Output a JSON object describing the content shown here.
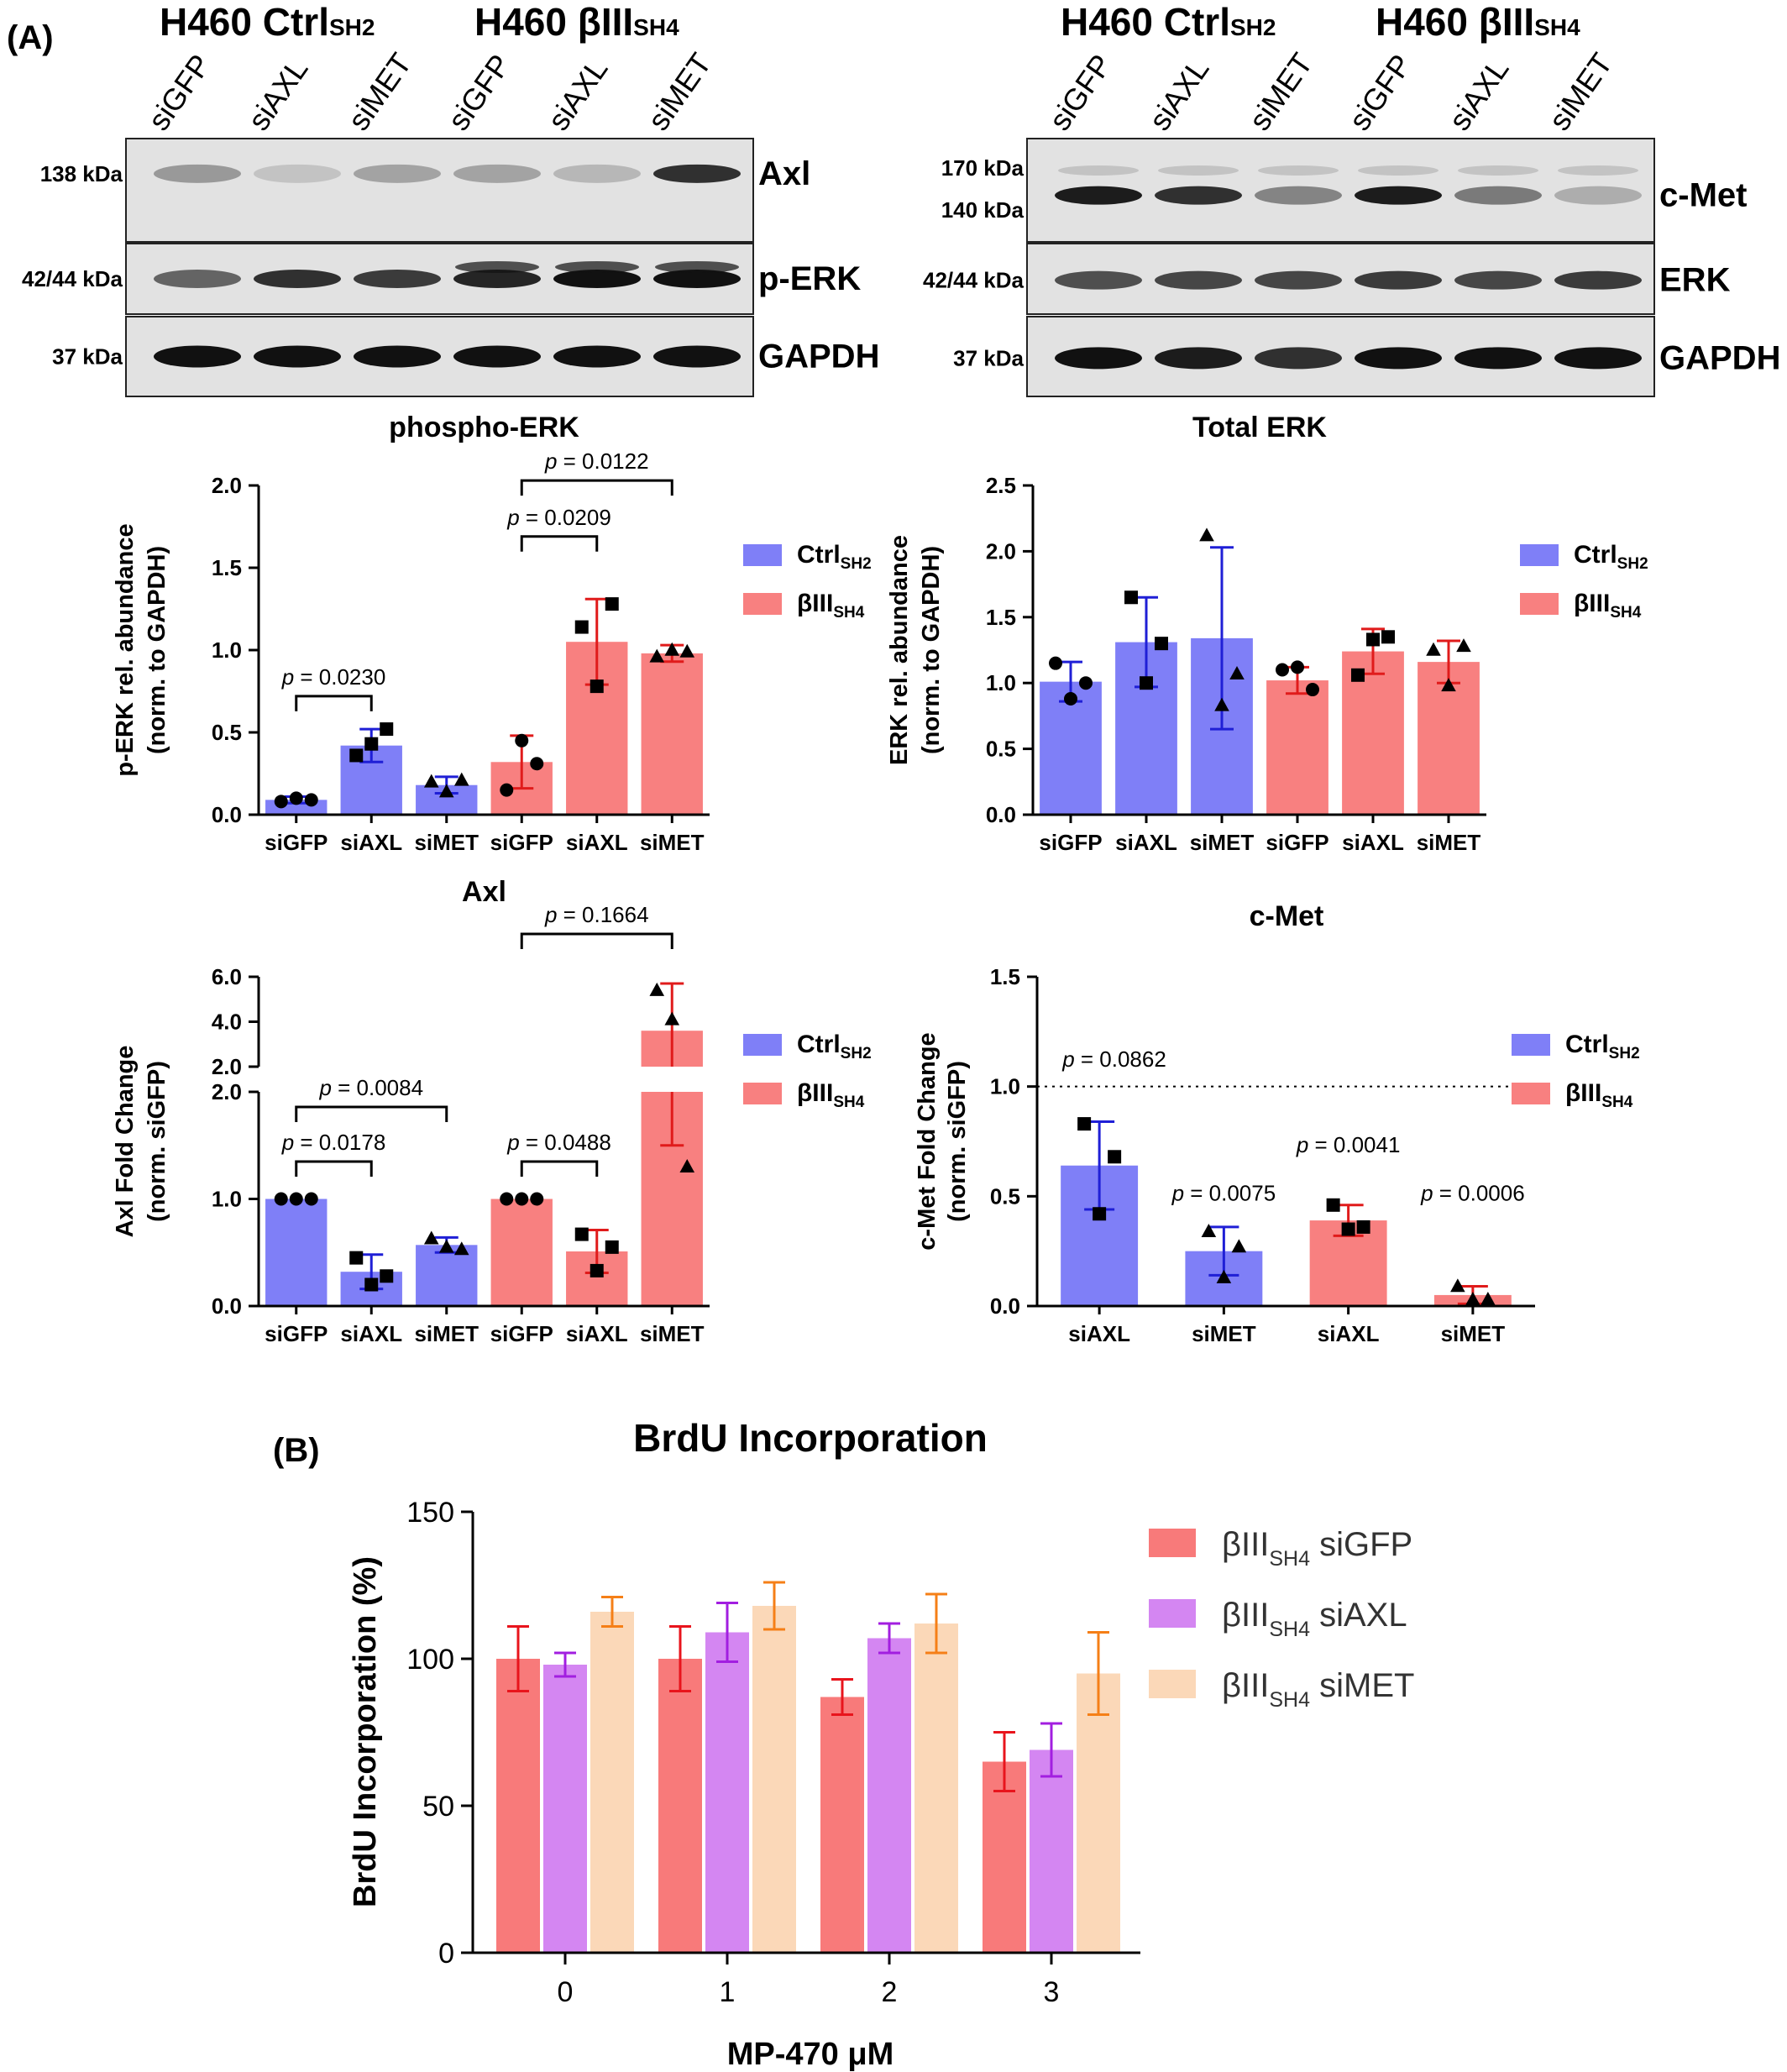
{
  "panel_labels": {
    "a": "(A)",
    "b": "(B)"
  },
  "western_blots": [
    {
      "group_titles": [
        [
          "H460 Ctrl",
          "SH2"
        ],
        [
          "H460 βIII",
          "SH4"
        ]
      ],
      "lanes": [
        "siGFP",
        "siAXL",
        "siMET",
        "siGFP",
        "siAXL",
        "siMET"
      ],
      "strips": [
        {
          "kda": [
            "138 kDa"
          ],
          "protein": "Axl"
        },
        {
          "kda": [
            "42/44 kDa"
          ],
          "protein": "p-ERK"
        },
        {
          "kda": [
            "37 kDa"
          ],
          "protein": "GAPDH"
        }
      ]
    },
    {
      "group_titles": [
        [
          "H460 Ctrl",
          "SH2"
        ],
        [
          "H460 βIII",
          "SH4"
        ]
      ],
      "lanes": [
        "siGFP",
        "siAXL",
        "siMET",
        "siGFP",
        "siAXL",
        "siMET"
      ],
      "strips": [
        {
          "kda": [
            "170 kDa",
            "140 kDa"
          ],
          "protein": "c-Met"
        },
        {
          "kda": [
            "42/44 kDa"
          ],
          "protein": "ERK"
        },
        {
          "kda": [
            "37 kDa"
          ],
          "protein": "GAPDH"
        }
      ]
    }
  ],
  "colors": {
    "ctrl": "#7f7ff7",
    "ctrl_err": "#1f1fd6",
    "biii": "#f88080",
    "biii_err": "#e01b1b",
    "biii_sigfp": "#f87a7a",
    "biii_siaxl": "#d486f2",
    "biii_simet": "#fbd8b8",
    "err_sigfp": "#e8141c",
    "err_siaxl": "#a21ee0",
    "err_simet": "#f57f17"
  },
  "chart_data": [
    {
      "id": "phospho-erk",
      "type": "bar",
      "title": "phospho-ERK",
      "ylabel": [
        "p-ERK rel. abundance",
        "(norm. to GAPDH)"
      ],
      "ylim": [
        0,
        2.0
      ],
      "yticks": [
        "0.0",
        "0.5",
        "1.0",
        "1.5",
        "2.0"
      ],
      "categories": [
        "siGFP",
        "siAXL",
        "siMET",
        "siGFP",
        "siAXL",
        "siMET"
      ],
      "bar_groups": [
        "ctrl",
        "ctrl",
        "ctrl",
        "biii",
        "biii",
        "biii"
      ],
      "values": [
        0.09,
        0.42,
        0.18,
        0.32,
        1.05,
        0.98
      ],
      "errors": [
        0.02,
        0.1,
        0.05,
        0.16,
        0.26,
        0.05
      ],
      "points": [
        [
          0.08,
          0.1,
          0.09
        ],
        [
          0.36,
          0.43,
          0.52
        ],
        [
          0.2,
          0.14,
          0.21
        ],
        [
          0.15,
          0.45,
          0.31
        ],
        [
          1.14,
          0.78,
          1.28
        ],
        [
          0.96,
          1.0,
          0.99
        ]
      ],
      "markers": [
        "circle",
        "square",
        "triangle",
        "circle",
        "square",
        "triangle"
      ],
      "legend": [
        {
          "label": "Ctrl",
          "sub": "SH2",
          "color": "ctrl"
        },
        {
          "label": "βIII",
          "sub": "SH4",
          "color": "biii"
        }
      ],
      "annotations": [
        {
          "text": "0.0230",
          "from": 0,
          "to": 1,
          "y": 0.72
        },
        {
          "text": "0.0209",
          "from": 3,
          "to": 4,
          "y": 1.69
        },
        {
          "text": "0.0122",
          "from": 3,
          "to": 5,
          "y": 2.03
        }
      ]
    },
    {
      "id": "total-erk",
      "type": "bar",
      "title": "Total ERK",
      "ylabel": [
        "ERK rel. abundance",
        "(norm. to GAPDH)"
      ],
      "ylim": [
        0,
        2.5
      ],
      "yticks": [
        "0.0",
        "0.5",
        "1.0",
        "1.5",
        "2.0",
        "2.5"
      ],
      "categories": [
        "siGFP",
        "siAXL",
        "siMET",
        "siGFP",
        "siAXL",
        "siMET"
      ],
      "bar_groups": [
        "ctrl",
        "ctrl",
        "ctrl",
        "biii",
        "biii",
        "biii"
      ],
      "values": [
        1.01,
        1.31,
        1.34,
        1.02,
        1.24,
        1.16
      ],
      "errors": [
        0.15,
        0.34,
        0.69,
        0.1,
        0.17,
        0.16
      ],
      "points": [
        [
          1.15,
          0.88,
          1.0
        ],
        [
          1.65,
          1.0,
          1.3
        ],
        [
          2.12,
          0.83,
          1.07
        ],
        [
          1.1,
          1.12,
          0.95
        ],
        [
          1.06,
          1.33,
          1.35
        ],
        [
          1.25,
          0.98,
          1.28
        ]
      ],
      "markers": [
        "circle",
        "square",
        "triangle",
        "circle",
        "square",
        "triangle"
      ],
      "legend": [
        {
          "label": "Ctrl",
          "sub": "SH2",
          "color": "ctrl"
        },
        {
          "label": "βIII",
          "sub": "SH4",
          "color": "biii"
        }
      ],
      "annotations": []
    },
    {
      "id": "axl",
      "type": "bar",
      "title": "Axl",
      "ylabel": [
        "Axl Fold Change",
        "(norm. siGFP)"
      ],
      "ylim": [
        0,
        6.0
      ],
      "axis_break": {
        "lower": [
          0,
          2.0
        ],
        "upper": [
          2.0,
          6.0
        ]
      },
      "yticks": [
        "0.0",
        "1.0",
        "2.0",
        "2.0",
        "4.0",
        "6.0"
      ],
      "categories": [
        "siGFP",
        "siAXL",
        "siMET",
        "siGFP",
        "siAXL",
        "siMET"
      ],
      "bar_groups": [
        "ctrl",
        "ctrl",
        "ctrl",
        "biii",
        "biii",
        "biii"
      ],
      "values": [
        1.0,
        0.32,
        0.57,
        1.0,
        0.51,
        3.6
      ],
      "errors": [
        0,
        0.16,
        0.07,
        0,
        0.2,
        2.1
      ],
      "points": [
        [
          1.0,
          1.0,
          1.0
        ],
        [
          0.45,
          0.2,
          0.28
        ],
        [
          0.63,
          0.55,
          0.53
        ],
        [
          1.0,
          1.0,
          1.0
        ],
        [
          0.67,
          0.33,
          0.55
        ],
        [
          5.4,
          4.1,
          1.3
        ]
      ],
      "markers": [
        "circle",
        "square",
        "triangle",
        "circle",
        "square",
        "triangle"
      ],
      "legend": [
        {
          "label": "Ctrl",
          "sub": "SH2",
          "color": "ctrl"
        },
        {
          "label": "βIII",
          "sub": "SH4",
          "color": "biii"
        }
      ],
      "annotations": [
        {
          "text": "0.0178",
          "from": 0,
          "to": 1,
          "y": 1.35
        },
        {
          "text": "0.0084",
          "from": 0,
          "to": 2,
          "y": 1.7
        },
        {
          "text": "0.0488",
          "from": 3,
          "to": 4,
          "y": 1.35
        },
        {
          "text": "0.1664",
          "from": 3,
          "to": 5,
          "y": 7.5
        }
      ]
    },
    {
      "id": "c-met",
      "type": "bar",
      "title": "c-Met",
      "ylabel": [
        "c-Met Fold Change",
        "(norm. siGFP)"
      ],
      "ylim": [
        0,
        1.5
      ],
      "yticks": [
        "0.0",
        "0.5",
        "1.0",
        "1.5"
      ],
      "categories": [
        "siAXL",
        "siMET",
        "siAXL",
        "siMET"
      ],
      "bar_groups": [
        "ctrl",
        "ctrl",
        "biii",
        "biii"
      ],
      "values": [
        0.64,
        0.25,
        0.39,
        0.05
      ],
      "errors": [
        0.2,
        0.11,
        0.07,
        0.04
      ],
      "points": [
        [
          0.83,
          0.42,
          0.68
        ],
        [
          0.34,
          0.13,
          0.27
        ],
        [
          0.46,
          0.35,
          0.36
        ],
        [
          0.09,
          0.03,
          0.03
        ]
      ],
      "markers": [
        "square",
        "triangle",
        "square",
        "triangle"
      ],
      "legend": [
        {
          "label": "Ctrl",
          "sub": "SH2",
          "color": "ctrl"
        },
        {
          "label": "βIII",
          "sub": "SH4",
          "color": "biii"
        }
      ],
      "reference_line": 1.0,
      "pvalues": [
        {
          "text": "0.0862",
          "cat": -0.25,
          "y": 1.09
        },
        {
          "text": "0.0075",
          "cat": 1,
          "y": 0.48
        },
        {
          "text": "0.0041",
          "cat": 2,
          "y": 0.7
        },
        {
          "text": "0.0006",
          "cat": 3,
          "y": 0.48
        }
      ]
    },
    {
      "id": "brdu",
      "type": "bar",
      "title": "BrdU Incorporation",
      "xlabel": "MP-470 μM",
      "ylabel": "BrdU Incorporation (%)",
      "ylim": [
        0,
        150
      ],
      "yticks": [
        "0",
        "50",
        "100",
        "150"
      ],
      "categories": [
        "0",
        "1",
        "2",
        "3"
      ],
      "series": [
        {
          "name": "βIII",
          "sub": "SH4",
          "suffix": " siGFP",
          "color": "biii_sigfp",
          "err_color": "err_sigfp",
          "values": [
            100,
            100,
            87,
            65
          ],
          "errors": [
            11,
            11,
            6,
            10
          ]
        },
        {
          "name": "βIII",
          "sub": "SH4",
          "suffix": " siAXL",
          "color": "biii_siaxl",
          "err_color": "err_siaxl",
          "values": [
            98,
            109,
            107,
            69
          ],
          "errors": [
            4,
            10,
            5,
            9
          ]
        },
        {
          "name": "βIII",
          "sub": "SH4",
          "suffix": " siMET",
          "color": "biii_simet",
          "err_color": "err_simet",
          "values": [
            116,
            118,
            112,
            95
          ],
          "errors": [
            5,
            8,
            10,
            14
          ]
        }
      ]
    }
  ]
}
